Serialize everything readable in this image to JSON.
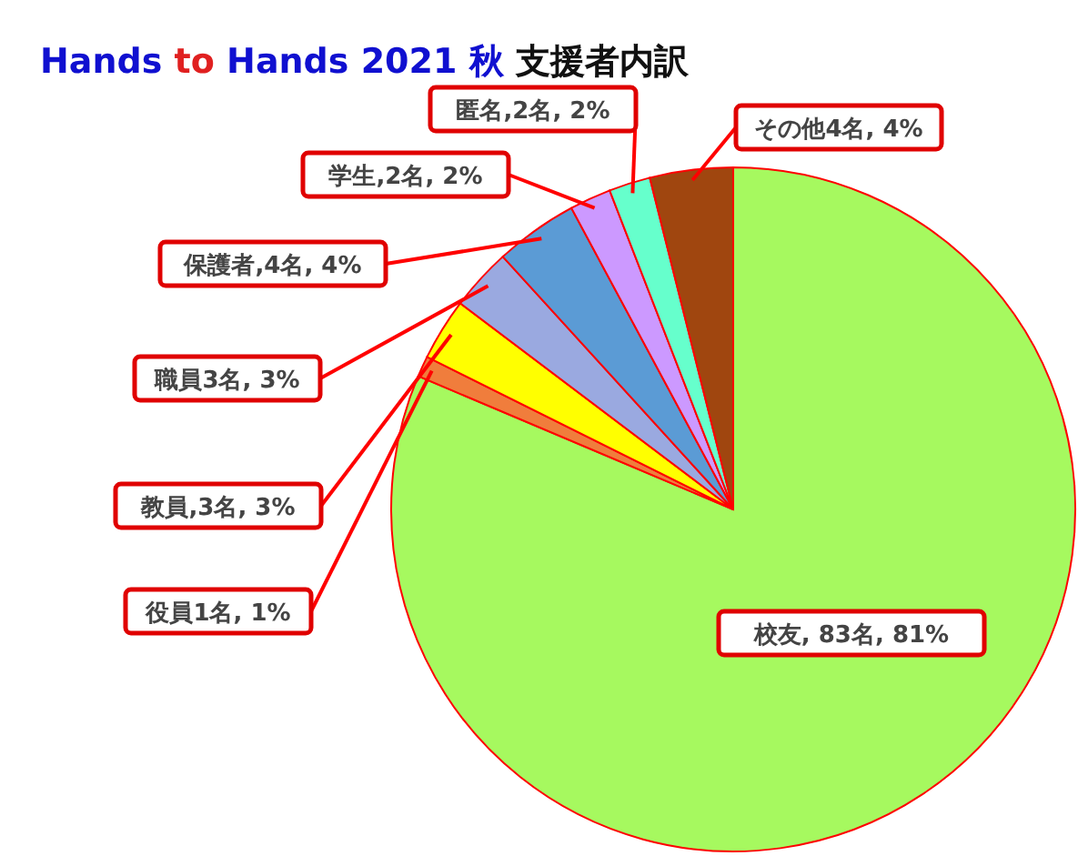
{
  "chart_data": {
    "type": "pie",
    "title": "Hands to Hands 2021 秋 支援者内訳",
    "categories": [
      "校友",
      "役員",
      "教員",
      "職員",
      "保護者",
      "学生",
      "匿名",
      "その他"
    ],
    "values": [
      83,
      1,
      3,
      3,
      4,
      2,
      2,
      4
    ],
    "value_labels": [
      ", 83名, 81%",
      "1名, 1%",
      ",3名, 3%",
      "3名, 3%",
      ",4名, 4%",
      ",2名, 2%",
      ",2名, 2%",
      "4名, 4%"
    ],
    "colors": [
      "#a6f95f",
      "#f07d3c",
      "#ffff00",
      "#9aa9e0",
      "#5b9bd5",
      "#cc99ff",
      "#66ffcc",
      "#a0460f"
    ]
  }
}
